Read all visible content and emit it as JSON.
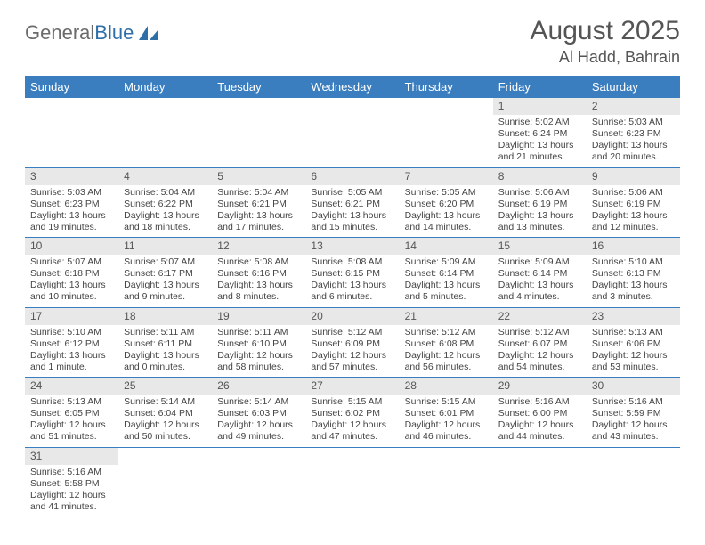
{
  "logo": {
    "word1": "General",
    "word2": "Blue"
  },
  "title": "August 2025",
  "location": "Al Hadd, Bahrain",
  "colors": {
    "header_bg": "#3a7ebf",
    "header_text": "#ffffff",
    "daynum_bg": "#e8e8e8",
    "border": "#3a7ebf",
    "logo_gray": "#6b6b6b",
    "logo_blue": "#2f6fa8",
    "sail_fill": "#2f6fa8"
  },
  "weekdays": [
    "Sunday",
    "Monday",
    "Tuesday",
    "Wednesday",
    "Thursday",
    "Friday",
    "Saturday"
  ],
  "weeks": [
    [
      null,
      null,
      null,
      null,
      null,
      {
        "n": "1",
        "sunrise": "5:02 AM",
        "sunset": "6:24 PM",
        "day_h": "13",
        "day_m": "21"
      },
      {
        "n": "2",
        "sunrise": "5:03 AM",
        "sunset": "6:23 PM",
        "day_h": "13",
        "day_m": "20"
      }
    ],
    [
      {
        "n": "3",
        "sunrise": "5:03 AM",
        "sunset": "6:23 PM",
        "day_h": "13",
        "day_m": "19"
      },
      {
        "n": "4",
        "sunrise": "5:04 AM",
        "sunset": "6:22 PM",
        "day_h": "13",
        "day_m": "18"
      },
      {
        "n": "5",
        "sunrise": "5:04 AM",
        "sunset": "6:21 PM",
        "day_h": "13",
        "day_m": "17"
      },
      {
        "n": "6",
        "sunrise": "5:05 AM",
        "sunset": "6:21 PM",
        "day_h": "13",
        "day_m": "15"
      },
      {
        "n": "7",
        "sunrise": "5:05 AM",
        "sunset": "6:20 PM",
        "day_h": "13",
        "day_m": "14"
      },
      {
        "n": "8",
        "sunrise": "5:06 AM",
        "sunset": "6:19 PM",
        "day_h": "13",
        "day_m": "13"
      },
      {
        "n": "9",
        "sunrise": "5:06 AM",
        "sunset": "6:19 PM",
        "day_h": "13",
        "day_m": "12"
      }
    ],
    [
      {
        "n": "10",
        "sunrise": "5:07 AM",
        "sunset": "6:18 PM",
        "day_h": "13",
        "day_m": "10"
      },
      {
        "n": "11",
        "sunrise": "5:07 AM",
        "sunset": "6:17 PM",
        "day_h": "13",
        "day_m": "9"
      },
      {
        "n": "12",
        "sunrise": "5:08 AM",
        "sunset": "6:16 PM",
        "day_h": "13",
        "day_m": "8"
      },
      {
        "n": "13",
        "sunrise": "5:08 AM",
        "sunset": "6:15 PM",
        "day_h": "13",
        "day_m": "6"
      },
      {
        "n": "14",
        "sunrise": "5:09 AM",
        "sunset": "6:14 PM",
        "day_h": "13",
        "day_m": "5"
      },
      {
        "n": "15",
        "sunrise": "5:09 AM",
        "sunset": "6:14 PM",
        "day_h": "13",
        "day_m": "4"
      },
      {
        "n": "16",
        "sunrise": "5:10 AM",
        "sunset": "6:13 PM",
        "day_h": "13",
        "day_m": "3"
      }
    ],
    [
      {
        "n": "17",
        "sunrise": "5:10 AM",
        "sunset": "6:12 PM",
        "day_h": "13",
        "day_m": "1"
      },
      {
        "n": "18",
        "sunrise": "5:11 AM",
        "sunset": "6:11 PM",
        "day_h": "13",
        "day_m": "0"
      },
      {
        "n": "19",
        "sunrise": "5:11 AM",
        "sunset": "6:10 PM",
        "day_h": "12",
        "day_m": "58"
      },
      {
        "n": "20",
        "sunrise": "5:12 AM",
        "sunset": "6:09 PM",
        "day_h": "12",
        "day_m": "57"
      },
      {
        "n": "21",
        "sunrise": "5:12 AM",
        "sunset": "6:08 PM",
        "day_h": "12",
        "day_m": "56"
      },
      {
        "n": "22",
        "sunrise": "5:12 AM",
        "sunset": "6:07 PM",
        "day_h": "12",
        "day_m": "54"
      },
      {
        "n": "23",
        "sunrise": "5:13 AM",
        "sunset": "6:06 PM",
        "day_h": "12",
        "day_m": "53"
      }
    ],
    [
      {
        "n": "24",
        "sunrise": "5:13 AM",
        "sunset": "6:05 PM",
        "day_h": "12",
        "day_m": "51"
      },
      {
        "n": "25",
        "sunrise": "5:14 AM",
        "sunset": "6:04 PM",
        "day_h": "12",
        "day_m": "50"
      },
      {
        "n": "26",
        "sunrise": "5:14 AM",
        "sunset": "6:03 PM",
        "day_h": "12",
        "day_m": "49"
      },
      {
        "n": "27",
        "sunrise": "5:15 AM",
        "sunset": "6:02 PM",
        "day_h": "12",
        "day_m": "47"
      },
      {
        "n": "28",
        "sunrise": "5:15 AM",
        "sunset": "6:01 PM",
        "day_h": "12",
        "day_m": "46"
      },
      {
        "n": "29",
        "sunrise": "5:16 AM",
        "sunset": "6:00 PM",
        "day_h": "12",
        "day_m": "44"
      },
      {
        "n": "30",
        "sunrise": "5:16 AM",
        "sunset": "5:59 PM",
        "day_h": "12",
        "day_m": "43"
      }
    ],
    [
      {
        "n": "31",
        "sunrise": "5:16 AM",
        "sunset": "5:58 PM",
        "day_h": "12",
        "day_m": "41"
      },
      null,
      null,
      null,
      null,
      null,
      null
    ]
  ],
  "labels": {
    "sunrise": "Sunrise:",
    "sunset": "Sunset:",
    "daylight_prefix": "Daylight:",
    "hours_word": "hours",
    "and_word": "and",
    "minutes_word": "minutes.",
    "minute_word": "minute."
  }
}
